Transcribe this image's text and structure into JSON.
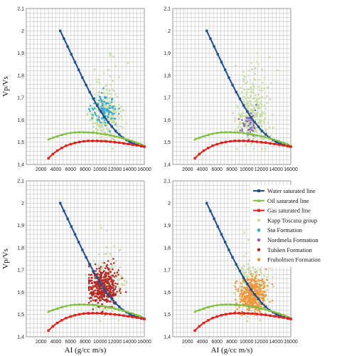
{
  "chart_data": {
    "type": "scatter",
    "xlabel": "AI (g/cc m/s)",
    "ylabel": "Vp/Vs",
    "xlim": [
      0,
      16000
    ],
    "ylim": [
      1.4,
      2.1
    ],
    "xticks": [
      "2000",
      "4000",
      "6000",
      "8000",
      "10000",
      "12000",
      "14000",
      "16000"
    ],
    "yticks": [
      "1,4",
      "1,5",
      "1,6",
      "1,7",
      "1,8",
      "1,9",
      "2",
      "2,1"
    ],
    "grid": true,
    "colors": {
      "water": "#1f4e8c",
      "oil": "#7fbf3f",
      "gas": "#e0201b",
      "kapp": "#c8dca4",
      "sto": "#3fa8c8",
      "nordmela": "#8a6ab8",
      "tuban": "#b22a2a",
      "fruholmen": "#f0963c"
    },
    "lines": [
      {
        "name": "Water saturated line",
        "color": "#1f4e8c",
        "marker": "square",
        "x": [
          4600,
          5100,
          5600,
          6100,
          6600,
          7100,
          7600,
          8100,
          8600,
          9100,
          9600,
          10100,
          10600,
          11100,
          11600,
          12100,
          12600,
          13100,
          13600,
          14100,
          14600,
          15100,
          15600,
          16000
        ],
        "y": [
          2.0,
          1.965,
          1.93,
          1.895,
          1.86,
          1.825,
          1.79,
          1.757,
          1.725,
          1.695,
          1.665,
          1.638,
          1.612,
          1.59,
          1.57,
          1.55,
          1.535,
          1.52,
          1.51,
          1.5,
          1.493,
          1.487,
          1.482,
          1.48
        ]
      },
      {
        "name": "Oil saturated line",
        "color": "#7fbf3f",
        "marker": "triangle",
        "x": [
          3000,
          3600,
          4200,
          4800,
          5400,
          6000,
          6600,
          7200,
          7800,
          8400,
          9000,
          9600,
          10200,
          10800,
          11400,
          12000,
          12600,
          13200,
          13800,
          14400,
          15000,
          15600,
          16000
        ],
        "y": [
          1.513,
          1.52,
          1.527,
          1.533,
          1.538,
          1.542,
          1.544,
          1.545,
          1.545,
          1.544,
          1.543,
          1.541,
          1.538,
          1.535,
          1.531,
          1.527,
          1.522,
          1.517,
          1.511,
          1.505,
          1.498,
          1.49,
          1.483
        ]
      },
      {
        "name": "Gas saturated line",
        "color": "#e0201b",
        "marker": "square",
        "x": [
          3000,
          3600,
          4200,
          4800,
          5400,
          6000,
          6600,
          7200,
          7800,
          8400,
          9000,
          9600,
          10200,
          10800,
          11400,
          12000,
          12600,
          13200,
          13800,
          14400,
          15000,
          15600,
          16000
        ],
        "y": [
          1.428,
          1.447,
          1.462,
          1.474,
          1.484,
          1.491,
          1.497,
          1.501,
          1.504,
          1.506,
          1.506,
          1.506,
          1.505,
          1.504,
          1.502,
          1.5,
          1.498,
          1.495,
          1.492,
          1.489,
          1.486,
          1.483,
          1.48
        ]
      }
    ],
    "scatter_groups": [
      {
        "name": "Kapp Toscana group",
        "color": "#c8dca4"
      },
      {
        "name": "Stø Formation",
        "color": "#3fa8c8"
      },
      {
        "name": "Nordmela Formation",
        "color": "#8a6ab8"
      },
      {
        "name": "Tubåen Formation",
        "color": "#b22a2a"
      },
      {
        "name": "Fruholmen Formation",
        "color": "#f0963c"
      }
    ],
    "panels": [
      {
        "id": "top-left",
        "show_y_label": true,
        "show_x_label": false,
        "highlight": "Stø Formation",
        "highlight_center": [
          10500,
          1.64
        ],
        "highlight_spread": [
          800,
          0.035
        ],
        "highlight_count": 110,
        "kapp_center": [
          10800,
          1.62
        ],
        "kapp_spread": [
          1100,
          0.06
        ],
        "kapp_count": 260
      },
      {
        "id": "top-right",
        "show_y_label": false,
        "show_x_label": false,
        "highlight": "Nordmela Formation",
        "highlight_center": [
          10300,
          1.575
        ],
        "highlight_spread": [
          650,
          0.03
        ],
        "highlight_count": 45,
        "kapp_center": [
          10800,
          1.62
        ],
        "kapp_spread": [
          1100,
          0.06
        ],
        "kapp_count": 320
      },
      {
        "id": "bottom-left",
        "show_y_label": true,
        "show_x_label": true,
        "highlight": "Tubåen Formation",
        "highlight_center": [
          10300,
          1.625
        ],
        "highlight_spread": [
          1000,
          0.045
        ],
        "highlight_count": 420,
        "kapp_center": [
          10800,
          1.62
        ],
        "kapp_spread": [
          1100,
          0.06
        ],
        "kapp_count": 200
      },
      {
        "id": "bottom-right",
        "show_y_label": false,
        "show_x_label": true,
        "highlight": "Fruholmen Formation",
        "highlight_center": [
          10700,
          1.59
        ],
        "highlight_spread": [
          950,
          0.04
        ],
        "highlight_count": 380,
        "kapp_center": [
          10800,
          1.62
        ],
        "kapp_spread": [
          1100,
          0.06
        ],
        "kapp_count": 220
      }
    ],
    "legend": {
      "placement": "bottom-right panel, top-right",
      "entries": [
        "Water saturated line",
        "Oil saturated line",
        "Gas saturated line",
        "Kapp Toscana group",
        "Stø Formation",
        "Nordmela Formation",
        "Tubåen Formation",
        "Fruholmen Formation"
      ]
    }
  }
}
